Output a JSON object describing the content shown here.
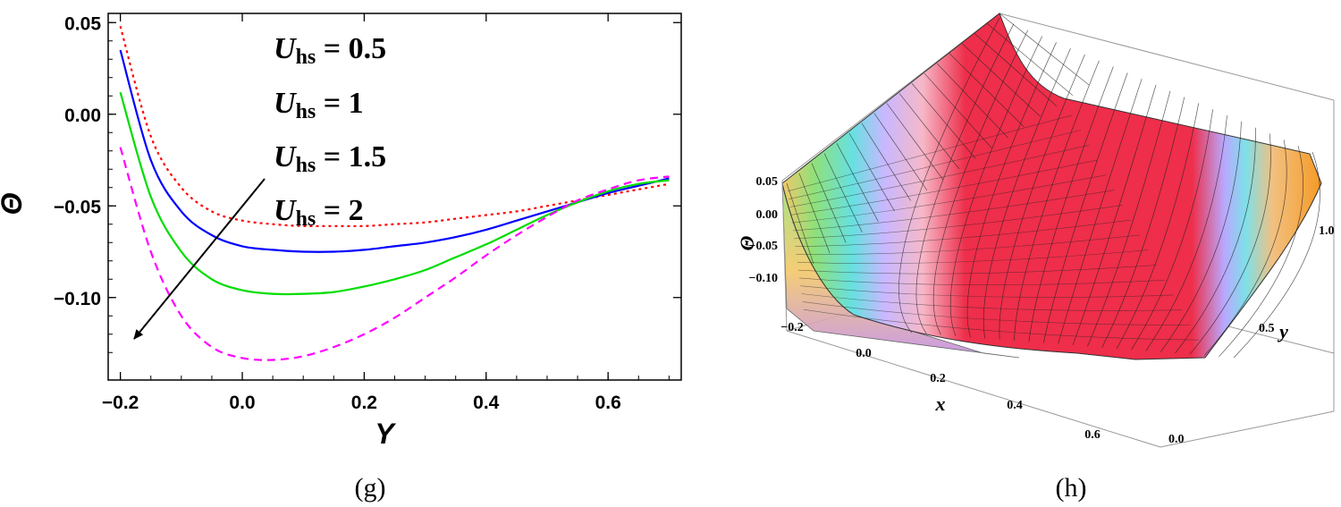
{
  "chart_data": [
    {
      "panel": "g",
      "type": "line",
      "caption": "(g)",
      "xlabel": "Y",
      "ylabel": "Θ",
      "xlim": [
        -0.22,
        0.72
      ],
      "ylim": [
        -0.145,
        0.055
      ],
      "x_ticks": [
        "-0.2",
        "0.0",
        "0.2",
        "0.4",
        "0.6"
      ],
      "y_ticks": [
        "0.05",
        "0.00",
        "-0.05",
        "-0.10"
      ],
      "x": [
        -0.2,
        -0.15,
        -0.1,
        -0.05,
        0.0,
        0.05,
        0.1,
        0.15,
        0.2,
        0.25,
        0.3,
        0.35,
        0.4,
        0.45,
        0.5,
        0.55,
        0.6,
        0.65,
        0.7
      ],
      "series": [
        {
          "name": "U_hs = 0.5",
          "color": "#ff0000",
          "dash": "dotted",
          "values": [
            0.048,
            -0.012,
            -0.04,
            -0.053,
            -0.058,
            -0.06,
            -0.061,
            -0.061,
            -0.061,
            -0.06,
            -0.059,
            -0.057,
            -0.055,
            -0.053,
            -0.05,
            -0.047,
            -0.044,
            -0.041,
            -0.038
          ]
        },
        {
          "name": "U_hs = 1",
          "color": "#0000ff",
          "dash": "solid",
          "values": [
            0.035,
            -0.025,
            -0.053,
            -0.066,
            -0.072,
            -0.074,
            -0.075,
            -0.075,
            -0.074,
            -0.072,
            -0.07,
            -0.067,
            -0.063,
            -0.058,
            -0.053,
            -0.048,
            -0.043,
            -0.039,
            -0.035
          ]
        },
        {
          "name": "U_hs = 1.5",
          "color": "#00dd00",
          "dash": "solid",
          "values": [
            0.012,
            -0.045,
            -0.075,
            -0.09,
            -0.096,
            -0.098,
            -0.098,
            -0.097,
            -0.094,
            -0.09,
            -0.085,
            -0.078,
            -0.071,
            -0.063,
            -0.055,
            -0.048,
            -0.042,
            -0.038,
            -0.036
          ]
        },
        {
          "name": "U_hs = 2",
          "color": "#ff00ff",
          "dash": "dashed",
          "values": [
            -0.018,
            -0.075,
            -0.11,
            -0.127,
            -0.133,
            -0.134,
            -0.132,
            -0.127,
            -0.12,
            -0.111,
            -0.1,
            -0.089,
            -0.077,
            -0.066,
            -0.056,
            -0.047,
            -0.041,
            -0.036,
            -0.034
          ]
        }
      ],
      "legend": [
        {
          "symbol": "U",
          "sub": "hs",
          "value": " = 0.5"
        },
        {
          "symbol": "U",
          "sub": "hs",
          "value": " = 1"
        },
        {
          "symbol": "U",
          "sub": "hs",
          "value": " = 1.5"
        },
        {
          "symbol": "U",
          "sub": "hs",
          "value": " = 2"
        }
      ],
      "annotation": "arrow indicating increasing U_hs"
    },
    {
      "panel": "h",
      "type": "surface",
      "caption": "(h)",
      "xlabel": "x",
      "ylabel": "y",
      "zlabel": "Θ",
      "x_ticks": [
        "-0.2",
        "0.0",
        "0.2",
        "0.4",
        "0.6"
      ],
      "y_ticks": [
        "0.0",
        "0.5",
        "1.0"
      ],
      "z_ticks": [
        "0.05",
        "0.00",
        "-0.05",
        "-0.10"
      ],
      "xlim": [
        -0.2,
        0.7
      ],
      "ylim": [
        0.0,
        1.0
      ],
      "zlim": [
        -0.12,
        0.06
      ]
    }
  ]
}
